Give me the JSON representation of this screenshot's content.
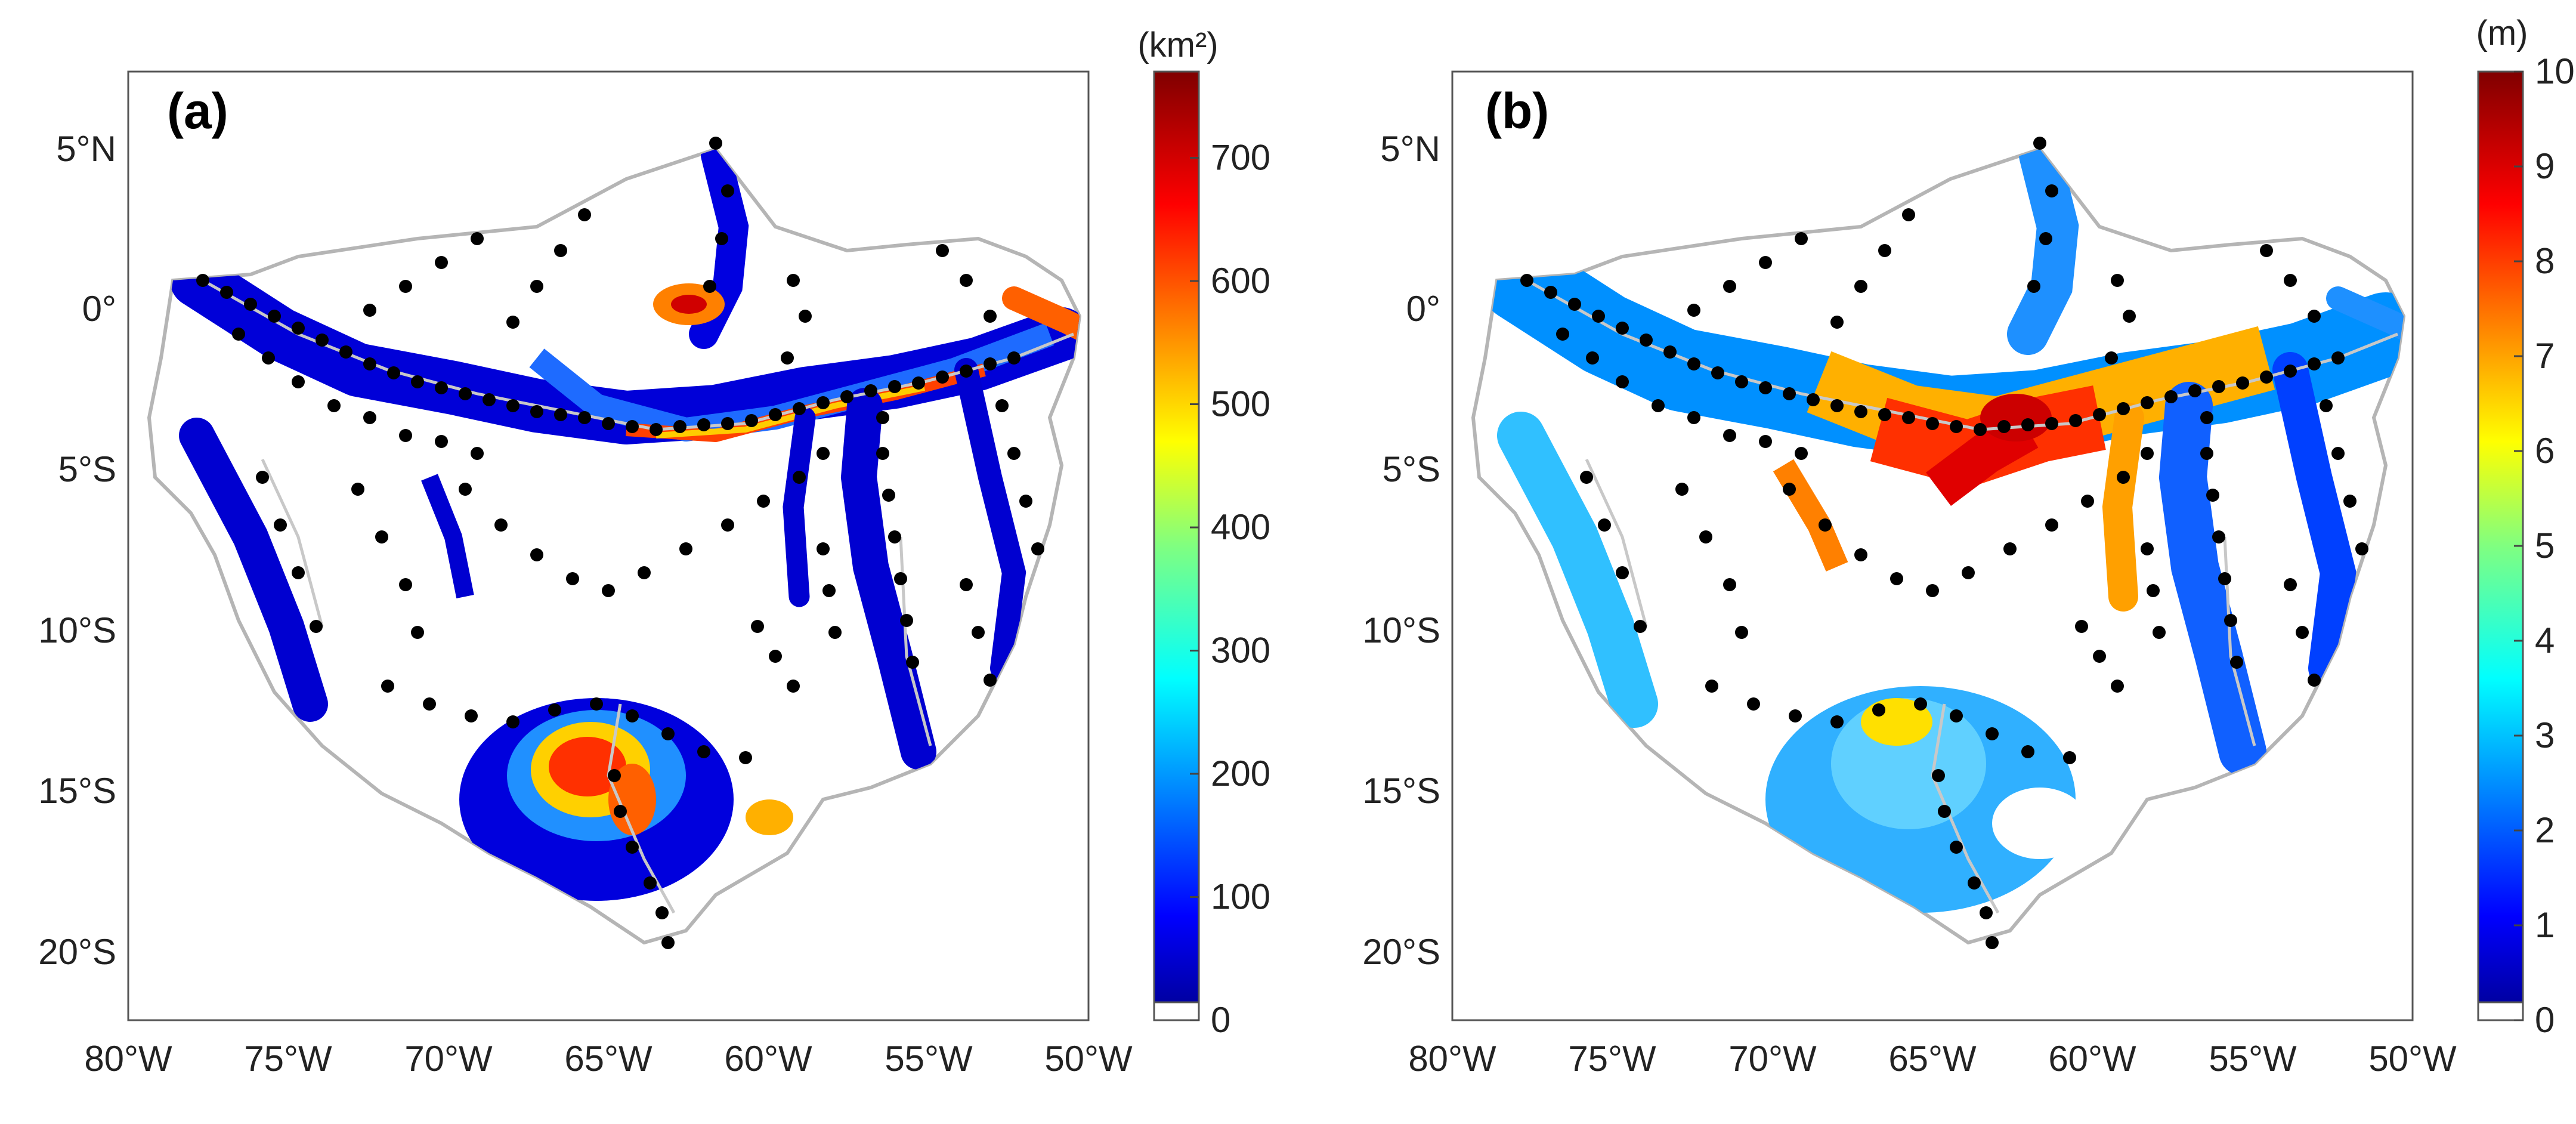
{
  "figure": {
    "panels": [
      {
        "label": "(a)",
        "colorbar_unit": "(km²)",
        "colorbar_ticks": [
          "0",
          "100",
          "200",
          "300",
          "400",
          "500",
          "600",
          "700"
        ],
        "colorbar_range": [
          0,
          770
        ]
      },
      {
        "label": "(b)",
        "colorbar_unit": "(m)",
        "colorbar_ticks": [
          "0",
          "1",
          "2",
          "3",
          "4",
          "5",
          "6",
          "7",
          "8",
          "9",
          "10"
        ],
        "colorbar_range": [
          0,
          10
        ]
      }
    ],
    "lat_labels": [
      "5°N",
      "0°",
      "5°S",
      "10°S",
      "15°S",
      "20°S"
    ],
    "lon_labels": [
      "80°W",
      "75°W",
      "70°W",
      "65°W",
      "60°W",
      "55°W",
      "50°W"
    ],
    "lat_values": [
      5,
      0,
      -5,
      -10,
      -15,
      -20
    ],
    "lon_values": [
      -80,
      -75,
      -70,
      -65,
      -60,
      -55,
      -50
    ],
    "lat_range": [
      -22.5,
      7.5
    ],
    "lon_range": [
      -80,
      -50
    ],
    "colormap": [
      "#00008f",
      "#0000ff",
      "#0080ff",
      "#00ffff",
      "#80ff80",
      "#ffff00",
      "#ff8000",
      "#ff0000",
      "#800000"
    ]
  }
}
